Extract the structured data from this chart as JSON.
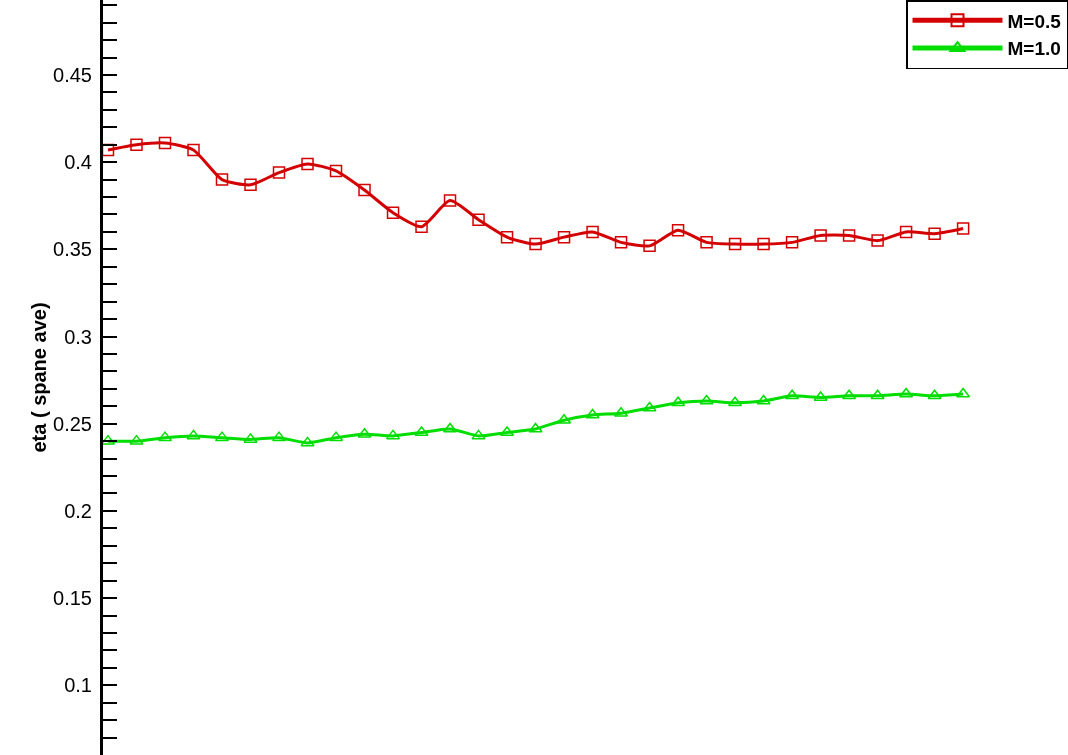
{
  "chart_data": {
    "type": "line",
    "ylabel": "eta ( spane ave)",
    "categories": [
      null,
      null,
      null,
      null,
      null,
      null,
      null,
      null,
      null,
      null,
      null,
      null,
      null,
      null,
      null,
      null,
      null,
      null,
      null,
      null,
      null,
      null,
      null,
      null,
      null,
      null,
      null,
      null,
      null,
      null,
      null
    ],
    "series": [
      {
        "name": "M=0.5",
        "color": "#d40000",
        "marker": "square",
        "values": [
          0.407,
          0.41,
          0.411,
          0.407,
          0.39,
          0.387,
          0.394,
          0.399,
          0.395,
          0.384,
          0.371,
          0.363,
          0.378,
          0.367,
          0.357,
          0.353,
          0.357,
          0.36,
          0.354,
          0.352,
          0.361,
          0.354,
          0.353,
          0.353,
          0.354,
          0.358,
          0.358,
          0.355,
          0.36,
          0.359,
          0.362
        ]
      },
      {
        "name": "M=1.0",
        "color": "#00dd00",
        "marker": "triangle",
        "values": [
          0.24,
          0.24,
          0.242,
          0.243,
          0.242,
          0.241,
          0.242,
          0.239,
          0.242,
          0.244,
          0.243,
          0.245,
          0.247,
          0.243,
          0.245,
          0.247,
          0.252,
          0.255,
          0.256,
          0.259,
          0.262,
          0.263,
          0.262,
          0.263,
          0.266,
          0.265,
          0.266,
          0.266,
          0.267,
          0.266,
          0.267
        ]
      }
    ],
    "ylim": [
      0.06,
      0.493
    ],
    "yticks": [
      {
        "value": 0.07,
        "label": null
      },
      {
        "value": 0.08,
        "label": null
      },
      {
        "value": 0.09,
        "label": null
      },
      0.1,
      {
        "value": 0.11,
        "label": null
      },
      {
        "value": 0.12,
        "label": null
      },
      {
        "value": 0.13,
        "label": null
      },
      {
        "value": 0.14,
        "label": null
      },
      0.15,
      {
        "value": 0.16,
        "label": null
      },
      {
        "value": 0.17,
        "label": null
      },
      {
        "value": 0.18,
        "label": null
      },
      {
        "value": 0.19,
        "label": null
      },
      0.2,
      {
        "value": 0.21,
        "label": null
      },
      {
        "value": 0.22,
        "label": null
      },
      {
        "value": 0.23,
        "label": null
      },
      {
        "value": 0.24,
        "label": null
      },
      0.25,
      {
        "value": 0.26,
        "label": null
      },
      {
        "value": 0.27,
        "label": null
      },
      {
        "value": 0.28,
        "label": null
      },
      {
        "value": 0.29,
        "label": null
      },
      0.3,
      {
        "value": 0.31,
        "label": null
      },
      {
        "value": 0.32,
        "label": null
      },
      {
        "value": 0.33,
        "label": null
      },
      {
        "value": 0.34,
        "label": null
      },
      0.35,
      {
        "value": 0.36,
        "label": null
      },
      {
        "value": 0.37,
        "label": null
      },
      {
        "value": 0.38,
        "label": null
      },
      {
        "value": 0.39,
        "label": null
      },
      0.4,
      {
        "value": 0.41,
        "label": null
      },
      {
        "value": 0.42,
        "label": null
      },
      {
        "value": 0.43,
        "label": null
      },
      {
        "value": 0.44,
        "label": null
      },
      0.45,
      {
        "value": 0.46,
        "label": null
      },
      {
        "value": 0.47,
        "label": null
      },
      {
        "value": 0.48,
        "label": null
      },
      {
        "value": 0.49,
        "label": null
      }
    ],
    "tick_labels": "y",
    "grid": false,
    "legend": "top right",
    "line_style": "solid"
  }
}
